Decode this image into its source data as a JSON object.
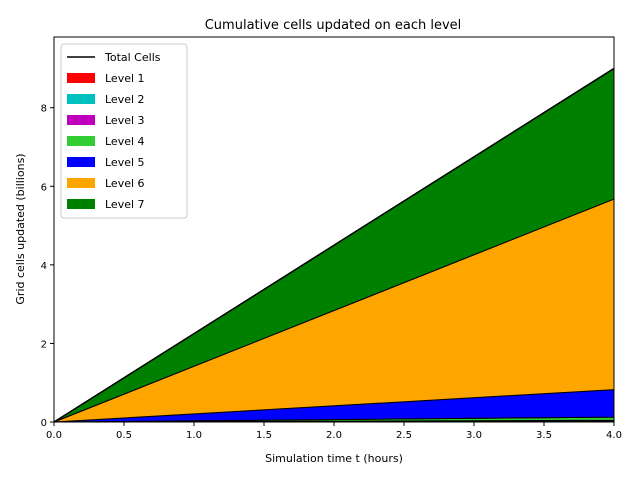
{
  "chart_data": {
    "type": "area",
    "title": "Cumulative cells updated on each level",
    "xlabel": "Simulation time t (hours)",
    "ylabel": "Grid cells updated (billions)",
    "xlim": [
      0,
      4.0
    ],
    "ylim": [
      0,
      9.8
    ],
    "xticks": [
      0.0,
      0.5,
      1.0,
      1.5,
      2.0,
      2.5,
      3.0,
      3.5,
      4.0
    ],
    "xtick_labels": [
      "0.0",
      "0.5",
      "1.0",
      "1.5",
      "2.0",
      "2.5",
      "3.0",
      "3.5",
      "4.0"
    ],
    "yticks": [
      0,
      2,
      4,
      6,
      8
    ],
    "ytick_labels": [
      "0",
      "2",
      "4",
      "6",
      "8"
    ],
    "grid": false,
    "legend_position": "top-left",
    "stacked": true,
    "x": [
      0,
      4.0
    ],
    "total": {
      "name": "Total Cells",
      "color": "#000000",
      "values": [
        0,
        9.0
      ]
    },
    "series": [
      {
        "name": "Level 1",
        "color": "#ff0000",
        "values": [
          0,
          0.005
        ]
      },
      {
        "name": "Level 2",
        "color": "#00bfbf",
        "values": [
          0,
          0.01
        ]
      },
      {
        "name": "Level 3",
        "color": "#bf00bf",
        "values": [
          0,
          0.03
        ]
      },
      {
        "name": "Level 4",
        "color": "#32cd32",
        "values": [
          0,
          0.08
        ]
      },
      {
        "name": "Level 5",
        "color": "#0000ff",
        "values": [
          0,
          0.7
        ]
      },
      {
        "name": "Level 6",
        "color": "#ffa500",
        "values": [
          0,
          4.85
        ]
      },
      {
        "name": "Level 7",
        "color": "#008000",
        "values": [
          0,
          3.325
        ]
      }
    ]
  }
}
